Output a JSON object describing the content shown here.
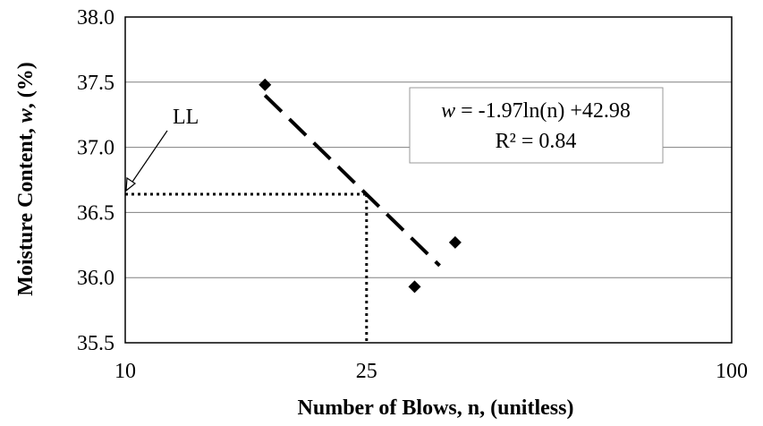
{
  "chart_data": {
    "type": "scatter",
    "x_scale": "log",
    "xlabel": "Number of Blows, n, (unitless)",
    "ylabel_parts": [
      "Moisture Content, ",
      "w",
      ", (%)"
    ],
    "xlim": [
      10,
      100
    ],
    "ylim": [
      35.5,
      38.0
    ],
    "x_ticks": [
      {
        "value": 10,
        "label": "10"
      },
      {
        "value": 25,
        "label": "25"
      },
      {
        "value": 100,
        "label": "100"
      }
    ],
    "y_ticks": [
      {
        "value": 35.5,
        "label": "35.5"
      },
      {
        "value": 36.0,
        "label": "36.0"
      },
      {
        "value": 36.5,
        "label": "36.5"
      },
      {
        "value": 37.0,
        "label": "37.0"
      },
      {
        "value": 37.5,
        "label": "37.5"
      },
      {
        "value": 38.0,
        "label": "38.0"
      }
    ],
    "grid": {
      "horizontal": true,
      "vertical": false
    },
    "points": [
      {
        "x": 17,
        "y": 37.48
      },
      {
        "x": 30,
        "y": 35.93
      },
      {
        "x": 35,
        "y": 36.27
      }
    ],
    "trendline": {
      "type": "logarithmic",
      "slope": -1.97,
      "intercept": 42.98,
      "x_range": [
        17,
        33
      ],
      "equation_parts": [
        "w",
        " = -1.97ln(n) +42.98"
      ],
      "r_squared_label": "R² = 0.84"
    },
    "liquid_limit": {
      "label": "LL",
      "n": 25,
      "w": 36.64
    },
    "colors": {
      "marker": "#000000",
      "line": "#000000",
      "grid": "#808080"
    }
  }
}
